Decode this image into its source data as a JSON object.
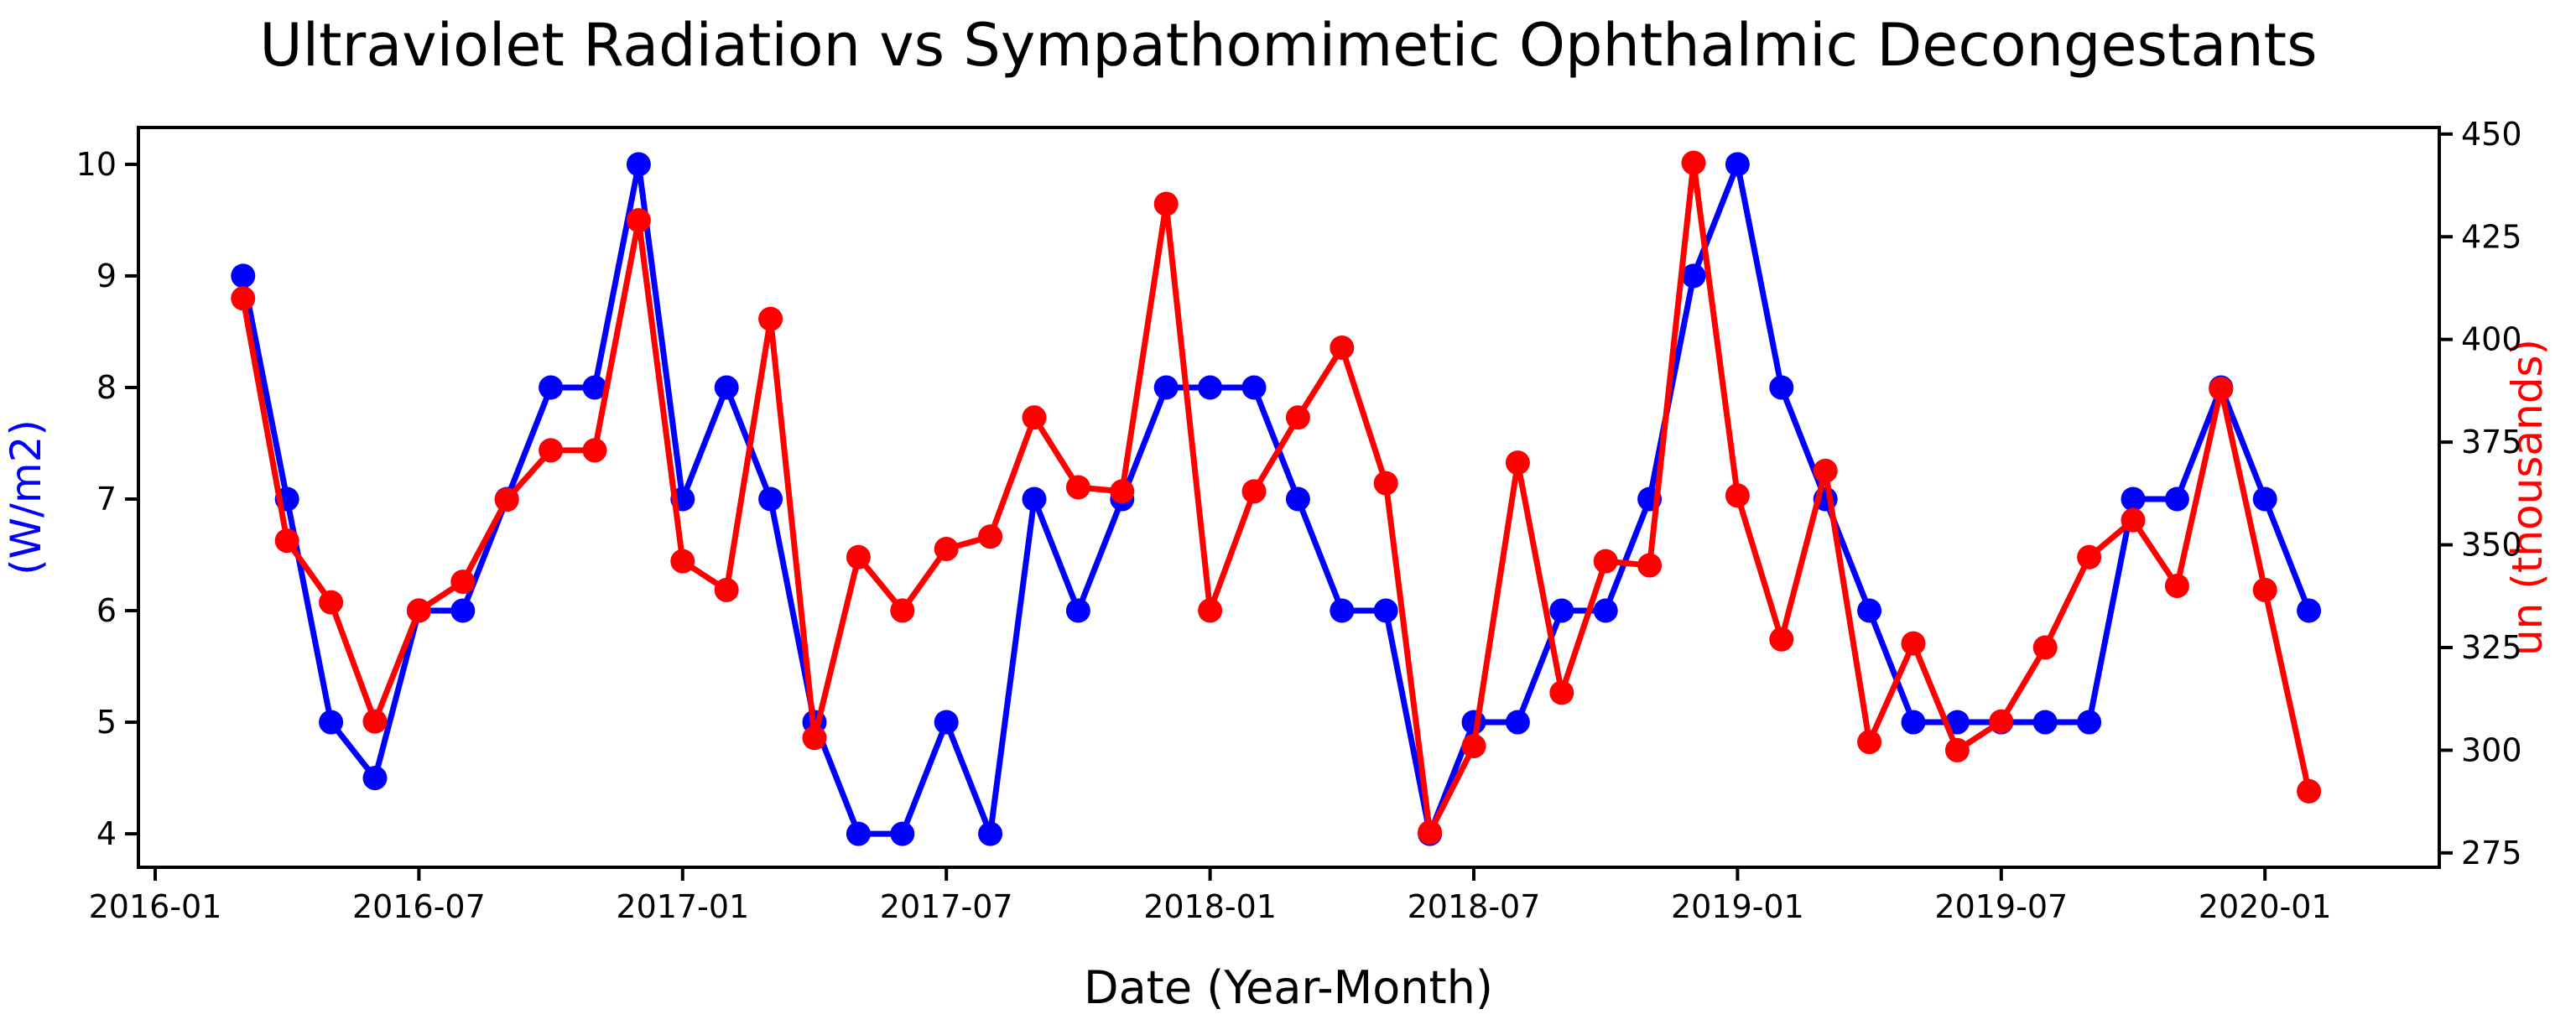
{
  "chart_data": {
    "type": "line",
    "title": "Ultraviolet Radiation vs Sympathomimetic Ophthalmic Decongestants",
    "xlabel": "Date (Year-Month)",
    "ylabel_left": "(W/m2)",
    "ylabel_right": "un (thousands)",
    "legend_position": "none",
    "grid": "off",
    "colors": {
      "left_series": "#0000ff",
      "right_series": "#ff0000",
      "axis": "#000000"
    },
    "x_tick_labels": [
      "2016-01",
      "2016-07",
      "2017-01",
      "2017-07",
      "2018-01",
      "2018-07",
      "2019-01",
      "2019-07",
      "2020-01"
    ],
    "y_left": {
      "ticks": [
        4,
        5,
        6,
        7,
        8,
        9,
        10
      ],
      "range": [
        3.7,
        10.33
      ]
    },
    "y_right": {
      "ticks": [
        275,
        300,
        325,
        350,
        375,
        400,
        425,
        450
      ],
      "range": [
        271.5,
        451.6
      ]
    },
    "x": [
      "2016-03",
      "2016-04",
      "2016-05",
      "2016-06",
      "2016-07",
      "2016-08",
      "2016-09",
      "2016-10",
      "2016-11",
      "2016-12",
      "2017-01",
      "2017-02",
      "2017-03",
      "2017-04",
      "2017-05",
      "2017-06",
      "2017-07",
      "2017-08",
      "2017-09",
      "2017-10",
      "2017-11",
      "2017-12",
      "2018-01",
      "2018-02",
      "2018-03",
      "2018-04",
      "2018-05",
      "2018-06",
      "2018-07",
      "2018-08",
      "2018-09",
      "2018-10",
      "2018-11",
      "2018-12",
      "2019-01",
      "2019-02",
      "2019-03",
      "2019-04",
      "2019-05",
      "2019-06",
      "2019-07",
      "2019-08",
      "2019-09",
      "2019-10",
      "2019-11",
      "2019-12",
      "2020-01",
      "2020-02"
    ],
    "series": [
      {
        "name": "Ultraviolet Radiation",
        "axis": "left",
        "color": "#0000ff",
        "values": [
          9,
          7,
          5,
          4.5,
          6,
          6,
          7,
          8,
          8,
          10,
          7,
          8,
          7,
          5,
          4,
          4,
          5,
          4,
          7,
          6,
          7,
          8,
          8,
          8,
          7,
          6,
          6,
          4,
          5,
          5,
          6,
          6,
          7,
          9,
          10,
          8,
          7,
          6,
          5,
          5,
          5,
          5,
          5,
          7,
          7,
          8,
          7,
          6
        ]
      },
      {
        "name": "Sympathomimetic Ophthalmic Decongestants",
        "axis": "right",
        "color": "#ff0000",
        "values": [
          410,
          351,
          336,
          307,
          334,
          341,
          361,
          373,
          373,
          429,
          346,
          339,
          405,
          303,
          347,
          334,
          349,
          352,
          381,
          364,
          363,
          433,
          334,
          363,
          381,
          398,
          365,
          280,
          301,
          370,
          314,
          346,
          345,
          443,
          362,
          327,
          368,
          302,
          326,
          300,
          307,
          325,
          347,
          356,
          340,
          388,
          339,
          290
        ]
      }
    ]
  }
}
